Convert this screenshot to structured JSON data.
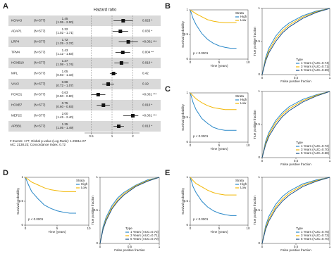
{
  "chart_data": [
    {
      "type": "forest",
      "panel": "A",
      "title": "Hazard ratio",
      "categories": [
        "KCNA3",
        "ADAP1",
        "LRP4",
        "TPM4",
        "HOXB10",
        "MPL",
        "VAV2",
        "FOXO1",
        "HOXB7",
        "MEF2C",
        "APBB1"
      ],
      "n_labels": [
        "(N=577)",
        "(N=577)",
        "(N=577)",
        "(N=577)",
        "(N=577)",
        "(N=577)",
        "(N=577)",
        "(N=577)",
        "(N=577)",
        "(N=577)",
        "(N=577)"
      ],
      "values": [
        1.45,
        1.32,
        1.72,
        1.43,
        1.37,
        1.05,
        0.88,
        0.63,
        0.75,
        2.0,
        1.25
      ],
      "value_labels": [
        "1.45",
        "1.32",
        "1.72",
        "1.43",
        "1.37",
        "1.05",
        "0.88",
        "0.63",
        "0.75",
        "2.00",
        "1.25"
      ],
      "lower": [
        1.05,
        1.02,
        1.25,
        1.12,
        1.08,
        0.93,
        0.72,
        0.5,
        0.6,
        1.45,
        1.05
      ],
      "upper": [
        2.0,
        1.71,
        2.37,
        1.83,
        1.74,
        1.18,
        1.07,
        0.8,
        0.93,
        2.4,
        1.49
      ],
      "ci_labels": [
        "(1.05 - 2.00)",
        "(1.02 - 1.71)",
        "(1.25 - 2.37)",
        "(1.12 - 1.83)",
        "(1.08 - 1.74)",
        "(0.93 - 1.18)",
        "(0.72 - 1.07)",
        "(0.50 - 0.80)",
        "(0.60 - 0.93)",
        "(1.45 - 2.40)",
        "(1.05 - 1.49)"
      ],
      "p_labels": [
        "0.023 *",
        "0.035 *",
        "<0.001 ***",
        "0.004 **",
        "0.010 *",
        "0.42",
        "0.19",
        "<0.001 ***",
        "0.010 *",
        "<0.001 ***",
        "0.013 *"
      ],
      "xlim": [
        0.4,
        2.5
      ],
      "xticks": [
        0.5,
        1,
        2
      ],
      "log_x": true,
      "footnotes": [
        "# Events: 177; Global p-value (Log-Rank): 1.2981e-07",
        "AIC: 2138.23; Concordance Index: 0.72"
      ]
    },
    {
      "type": "km",
      "panel": "B",
      "xlabel": "Time (years)",
      "ylabel": "Survival probability",
      "legend_title": "Strata",
      "legend": "top-right",
      "annotation": "p < 0.0001",
      "xlim": [
        0,
        10
      ],
      "xticks": [
        0,
        5,
        10
      ],
      "ylim": [
        0,
        1
      ],
      "yticks": [
        0,
        0.5,
        1
      ],
      "x": [
        0,
        0.5,
        1,
        2,
        3,
        4,
        5,
        6,
        7,
        8
      ],
      "series": [
        {
          "name": "High",
          "color": "#2a88c8",
          "values": [
            1,
            0.82,
            0.7,
            0.52,
            0.4,
            0.32,
            0.27,
            0.24,
            0.22,
            0.22
          ]
        },
        {
          "name": "Low",
          "color": "#f2b705",
          "values": [
            1,
            0.96,
            0.92,
            0.86,
            0.8,
            0.77,
            0.75,
            0.74,
            0.74,
            0.74
          ]
        }
      ]
    },
    {
      "type": "roc",
      "xlabel": "False positive fraction",
      "ylabel": "True positive fraction",
      "legend_title": "Type",
      "legend": "bottom-right",
      "xlim": [
        0,
        1
      ],
      "xticks": [
        0,
        0.5,
        1
      ],
      "ylim": [
        0,
        1
      ],
      "yticks": [
        0,
        0.5,
        1
      ],
      "x": [
        0,
        0.05,
        0.1,
        0.2,
        0.3,
        0.4,
        0.6,
        0.8,
        1
      ],
      "series": [
        {
          "name": "1 Years (AUC=0.74)",
          "color": "#2a88c8",
          "values": [
            0,
            0.25,
            0.4,
            0.58,
            0.7,
            0.78,
            0.89,
            0.96,
            1
          ]
        },
        {
          "name": "3 Years (AUC=0.71)",
          "color": "#f2b705",
          "values": [
            0,
            0.22,
            0.36,
            0.54,
            0.66,
            0.75,
            0.87,
            0.95,
            1
          ]
        },
        {
          "name": "5 Years (AUC=0.69)",
          "color": "#1b4f8a",
          "values": [
            0,
            0.2,
            0.33,
            0.5,
            0.63,
            0.72,
            0.85,
            0.94,
            1
          ]
        }
      ]
    },
    {
      "type": "km",
      "panel": "C",
      "xlabel": "Time (years)",
      "ylabel": "Survival probability",
      "legend_title": "Strata",
      "legend": "top-right",
      "annotation": "p < 0.0001",
      "xlim": [
        0,
        10
      ],
      "xticks": [
        0,
        5,
        10
      ],
      "ylim": [
        0,
        1
      ],
      "yticks": [
        0,
        0.5,
        1
      ],
      "x": [
        0,
        0.5,
        1,
        2,
        3,
        4,
        5,
        6,
        7,
        8
      ],
      "series": [
        {
          "name": "High",
          "color": "#2a88c8",
          "values": [
            1,
            0.8,
            0.66,
            0.48,
            0.38,
            0.3,
            0.26,
            0.24,
            0.24,
            0.24
          ]
        },
        {
          "name": "Low",
          "color": "#f2b705",
          "values": [
            1,
            0.94,
            0.88,
            0.8,
            0.74,
            0.7,
            0.68,
            0.66,
            0.66,
            0.66
          ]
        }
      ]
    },
    {
      "type": "roc",
      "xlabel": "False positive fraction",
      "ylabel": "True positive fraction",
      "legend_title": "Type",
      "legend": "bottom-right",
      "xlim": [
        0,
        1
      ],
      "xticks": [
        0,
        0.5,
        1
      ],
      "ylim": [
        0,
        1
      ],
      "yticks": [
        0,
        0.5,
        1
      ],
      "x": [
        0,
        0.05,
        0.1,
        0.2,
        0.3,
        0.4,
        0.6,
        0.8,
        1
      ],
      "series": [
        {
          "name": "1 Years (AUC=0.72)",
          "color": "#2a88c8",
          "values": [
            0,
            0.24,
            0.38,
            0.56,
            0.68,
            0.77,
            0.88,
            0.95,
            1
          ]
        },
        {
          "name": "3 Years (AUC=0.70)",
          "color": "#f2b705",
          "values": [
            0,
            0.21,
            0.35,
            0.53,
            0.65,
            0.74,
            0.86,
            0.94,
            1
          ]
        },
        {
          "name": "5 Years (AUC=0.68)",
          "color": "#1b4f8a",
          "values": [
            0,
            0.19,
            0.32,
            0.49,
            0.62,
            0.71,
            0.84,
            0.93,
            1
          ]
        }
      ]
    },
    {
      "type": "km",
      "panel": "D",
      "xlabel": "Time (years)",
      "ylabel": "Survival probability",
      "legend_title": "Strata",
      "legend": "top-right",
      "annotation": "p < 0.0001",
      "xlim": [
        0,
        10
      ],
      "xticks": [
        0,
        5,
        10
      ],
      "ylim": [
        0,
        1
      ],
      "yticks": [
        0,
        0.5,
        1
      ],
      "x": [
        0,
        0.5,
        1,
        2,
        3,
        4,
        5,
        6,
        7,
        8
      ],
      "series": [
        {
          "name": "High",
          "color": "#2a88c8",
          "values": [
            1,
            0.84,
            0.7,
            0.55,
            0.42,
            0.35,
            0.3,
            0.27,
            0.25,
            0.25
          ]
        },
        {
          "name": "Low",
          "color": "#f2b705",
          "values": [
            1,
            0.95,
            0.9,
            0.84,
            0.78,
            0.74,
            0.72,
            0.7,
            0.7,
            0.7
          ]
        }
      ]
    },
    {
      "type": "roc",
      "xlabel": "False positive fraction",
      "ylabel": "True positive fraction",
      "legend_title": "Type",
      "legend": "bottom-right",
      "xlim": [
        0,
        1
      ],
      "xticks": [
        0,
        0.5,
        1
      ],
      "ylim": [
        0,
        1
      ],
      "yticks": [
        0,
        0.5,
        1
      ],
      "x": [
        0,
        0.05,
        0.1,
        0.2,
        0.3,
        0.4,
        0.6,
        0.8,
        1
      ],
      "series": [
        {
          "name": "1 Years (AUC=0.73)",
          "color": "#2a88c8",
          "values": [
            0,
            0.25,
            0.39,
            0.57,
            0.69,
            0.77,
            0.88,
            0.96,
            1
          ]
        },
        {
          "name": "3 Years (AUC=0.71)",
          "color": "#f2b705",
          "values": [
            0,
            0.22,
            0.36,
            0.54,
            0.66,
            0.75,
            0.87,
            0.95,
            1
          ]
        },
        {
          "name": "5 Years (AUC=0.70)",
          "color": "#1b4f8a",
          "values": [
            0,
            0.21,
            0.34,
            0.52,
            0.64,
            0.73,
            0.86,
            0.94,
            1
          ]
        }
      ]
    },
    {
      "type": "km",
      "panel": "E",
      "xlabel": "Time (years)",
      "ylabel": "Survival probability",
      "legend_title": "Strata",
      "legend": "top-right",
      "annotation": "p < 0.0001",
      "xlim": [
        0,
        10
      ],
      "xticks": [
        0,
        5,
        10
      ],
      "ylim": [
        0,
        1
      ],
      "yticks": [
        0,
        0.5,
        1
      ],
      "x": [
        0,
        0.5,
        1,
        2,
        3,
        4,
        5,
        6,
        7,
        8
      ],
      "series": [
        {
          "name": "High",
          "color": "#2a88c8",
          "values": [
            1,
            0.8,
            0.68,
            0.5,
            0.38,
            0.3,
            0.25,
            0.22,
            0.2,
            0.2
          ]
        },
        {
          "name": "Low",
          "color": "#f2b705",
          "values": [
            1,
            0.93,
            0.87,
            0.8,
            0.73,
            0.68,
            0.65,
            0.63,
            0.63,
            0.63
          ]
        }
      ]
    },
    {
      "type": "roc",
      "xlabel": "False positive fraction",
      "ylabel": "True positive fraction",
      "legend_title": "Type",
      "legend": "bottom-right",
      "xlim": [
        0,
        1
      ],
      "xticks": [
        0,
        0.5,
        1
      ],
      "ylim": [
        0,
        1
      ],
      "yticks": [
        0,
        0.5,
        1
      ],
      "x": [
        0,
        0.05,
        0.1,
        0.2,
        0.3,
        0.4,
        0.6,
        0.8,
        1
      ],
      "series": [
        {
          "name": "1 Years (AUC=0.75)",
          "color": "#2a88c8",
          "values": [
            0,
            0.26,
            0.41,
            0.59,
            0.71,
            0.79,
            0.9,
            0.96,
            1
          ]
        },
        {
          "name": "3 Years (AUC=0.72)",
          "color": "#f2b705",
          "values": [
            0,
            0.23,
            0.37,
            0.55,
            0.67,
            0.76,
            0.88,
            0.95,
            1
          ]
        },
        {
          "name": "5 Years (AUC=0.70)",
          "color": "#1b4f8a",
          "values": [
            0,
            0.21,
            0.34,
            0.52,
            0.64,
            0.73,
            0.86,
            0.94,
            1
          ]
        }
      ]
    }
  ]
}
